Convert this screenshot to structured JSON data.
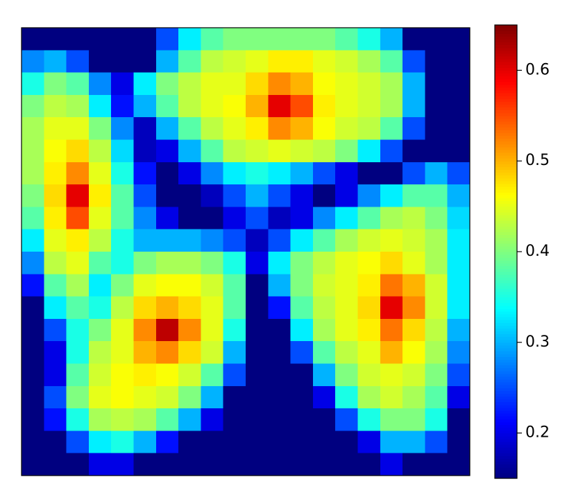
{
  "chart_data": {
    "type": "heatmap",
    "colormap": "jet",
    "zlim": [
      0.15,
      0.65
    ],
    "cticks": [
      0.2,
      0.3,
      0.4,
      0.5,
      0.6
    ],
    "z": [
      [
        0.15,
        0.15,
        0.15,
        0.15,
        0.15,
        0.15,
        0.25,
        0.33,
        0.38,
        0.4,
        0.4,
        0.4,
        0.4,
        0.4,
        0.38,
        0.35,
        0.3,
        0.15,
        0.15,
        0.15
      ],
      [
        0.28,
        0.3,
        0.25,
        0.15,
        0.15,
        0.15,
        0.3,
        0.38,
        0.43,
        0.44,
        0.45,
        0.47,
        0.47,
        0.45,
        0.44,
        0.42,
        0.38,
        0.25,
        0.15,
        0.15
      ],
      [
        0.35,
        0.4,
        0.38,
        0.28,
        0.2,
        0.33,
        0.4,
        0.43,
        0.45,
        0.45,
        0.48,
        0.52,
        0.5,
        0.46,
        0.45,
        0.44,
        0.42,
        0.3,
        0.15,
        0.15
      ],
      [
        0.4,
        0.43,
        0.42,
        0.33,
        0.22,
        0.3,
        0.38,
        0.43,
        0.45,
        0.46,
        0.5,
        0.6,
        0.55,
        0.47,
        0.45,
        0.44,
        0.42,
        0.3,
        0.15,
        0.15
      ],
      [
        0.42,
        0.45,
        0.45,
        0.4,
        0.28,
        0.18,
        0.3,
        0.38,
        0.43,
        0.45,
        0.47,
        0.52,
        0.5,
        0.46,
        0.44,
        0.43,
        0.38,
        0.25,
        0.15,
        0.15
      ],
      [
        0.42,
        0.46,
        0.48,
        0.43,
        0.32,
        0.18,
        0.2,
        0.3,
        0.38,
        0.43,
        0.44,
        0.45,
        0.44,
        0.43,
        0.4,
        0.33,
        0.25,
        0.15,
        0.15,
        0.15
      ],
      [
        0.42,
        0.47,
        0.52,
        0.45,
        0.35,
        0.22,
        0.15,
        0.2,
        0.28,
        0.33,
        0.35,
        0.33,
        0.3,
        0.25,
        0.2,
        0.15,
        0.15,
        0.25,
        0.3,
        0.25
      ],
      [
        0.4,
        0.48,
        0.6,
        0.47,
        0.38,
        0.25,
        0.15,
        0.15,
        0.18,
        0.25,
        0.3,
        0.25,
        0.2,
        0.15,
        0.2,
        0.28,
        0.33,
        0.38,
        0.38,
        0.3
      ],
      [
        0.38,
        0.47,
        0.55,
        0.45,
        0.38,
        0.28,
        0.2,
        0.15,
        0.15,
        0.2,
        0.25,
        0.18,
        0.2,
        0.28,
        0.33,
        0.38,
        0.42,
        0.43,
        0.4,
        0.32
      ],
      [
        0.33,
        0.45,
        0.47,
        0.43,
        0.35,
        0.3,
        0.3,
        0.3,
        0.28,
        0.25,
        0.18,
        0.25,
        0.33,
        0.38,
        0.42,
        0.44,
        0.45,
        0.44,
        0.42,
        0.33
      ],
      [
        0.28,
        0.43,
        0.45,
        0.38,
        0.35,
        0.4,
        0.42,
        0.42,
        0.4,
        0.35,
        0.2,
        0.33,
        0.4,
        0.43,
        0.45,
        0.46,
        0.48,
        0.45,
        0.42,
        0.33
      ],
      [
        0.22,
        0.38,
        0.42,
        0.33,
        0.4,
        0.45,
        0.46,
        0.46,
        0.44,
        0.38,
        0.15,
        0.3,
        0.4,
        0.44,
        0.45,
        0.47,
        0.53,
        0.5,
        0.44,
        0.33
      ],
      [
        0.15,
        0.33,
        0.38,
        0.35,
        0.43,
        0.48,
        0.5,
        0.48,
        0.45,
        0.38,
        0.15,
        0.22,
        0.38,
        0.43,
        0.45,
        0.48,
        0.6,
        0.52,
        0.44,
        0.33
      ],
      [
        0.15,
        0.25,
        0.35,
        0.4,
        0.45,
        0.52,
        0.62,
        0.52,
        0.45,
        0.35,
        0.15,
        0.15,
        0.33,
        0.42,
        0.45,
        0.47,
        0.53,
        0.48,
        0.43,
        0.3
      ],
      [
        0.15,
        0.2,
        0.35,
        0.43,
        0.45,
        0.5,
        0.52,
        0.48,
        0.44,
        0.3,
        0.15,
        0.15,
        0.25,
        0.38,
        0.43,
        0.45,
        0.5,
        0.46,
        0.42,
        0.28
      ],
      [
        0.15,
        0.2,
        0.38,
        0.44,
        0.46,
        0.47,
        0.46,
        0.44,
        0.38,
        0.25,
        0.15,
        0.15,
        0.15,
        0.3,
        0.4,
        0.44,
        0.45,
        0.44,
        0.4,
        0.25
      ],
      [
        0.15,
        0.25,
        0.4,
        0.45,
        0.46,
        0.45,
        0.44,
        0.4,
        0.3,
        0.15,
        0.15,
        0.15,
        0.15,
        0.2,
        0.35,
        0.42,
        0.44,
        0.42,
        0.38,
        0.2
      ],
      [
        0.15,
        0.22,
        0.35,
        0.42,
        0.43,
        0.42,
        0.38,
        0.3,
        0.2,
        0.15,
        0.15,
        0.15,
        0.15,
        0.15,
        0.25,
        0.35,
        0.4,
        0.4,
        0.35,
        0.15
      ],
      [
        0.15,
        0.15,
        0.25,
        0.33,
        0.35,
        0.3,
        0.22,
        0.15,
        0.15,
        0.15,
        0.15,
        0.15,
        0.15,
        0.15,
        0.15,
        0.2,
        0.3,
        0.3,
        0.25,
        0.15
      ],
      [
        0.15,
        0.15,
        0.15,
        0.2,
        0.2,
        0.15,
        0.15,
        0.15,
        0.15,
        0.15,
        0.15,
        0.15,
        0.15,
        0.15,
        0.15,
        0.15,
        0.2,
        0.15,
        0.15,
        0.15
      ]
    ]
  }
}
